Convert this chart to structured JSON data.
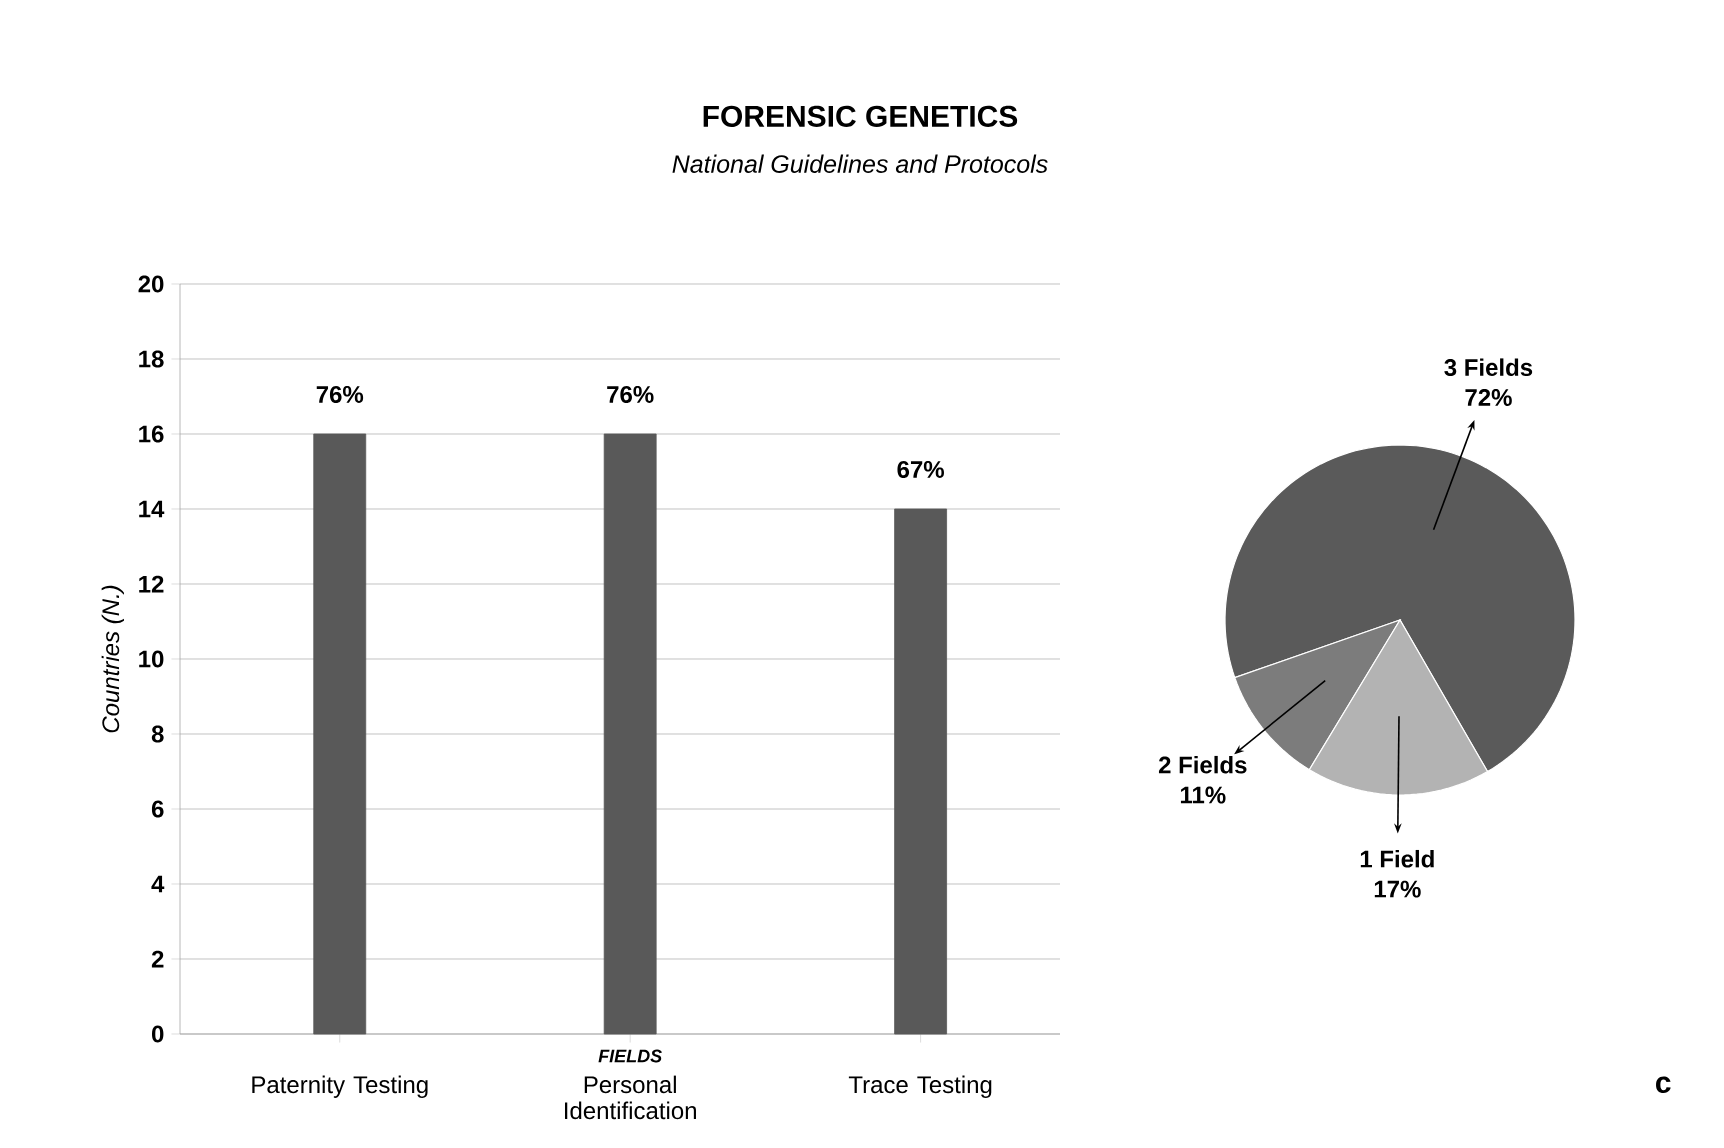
{
  "chart_data": [
    {
      "type": "bar",
      "title": "FORENSIC GENETICS",
      "subtitle": "National Guidelines and Protocols",
      "ylabel": "Countries (N.)",
      "categories": [
        "Paternity Testing",
        "Personal Identification",
        "Trace Testing"
      ],
      "values": [
        16,
        16,
        14
      ],
      "color": "#595959",
      "ylim": [
        0,
        20
      ],
      "yticks": [
        0,
        2,
        4,
        6,
        8,
        10,
        12,
        14,
        16,
        18,
        20
      ],
      "grid": "y",
      "annotations": [
        {
          "text": "76%",
          "x": "Paternity Testing",
          "y": 16
        },
        {
          "text": "76%",
          "x": "Personal Identification",
          "y": 16
        },
        {
          "text": "67%",
          "x": "Trace Testing",
          "y": 14
        },
        "FIELDS"
      ]
    },
    {
      "type": "pie",
      "categories": [
        "3 Fields",
        "2 Fields",
        "1 Field"
      ],
      "values": [
        72,
        11,
        17
      ],
      "value_labels": [
        "72%",
        "11%",
        "17%"
      ],
      "colors": [
        "#5a5a5a",
        "#7c7c7c",
        "#b3b3b3"
      ],
      "annotations": [
        "c"
      ]
    }
  ]
}
